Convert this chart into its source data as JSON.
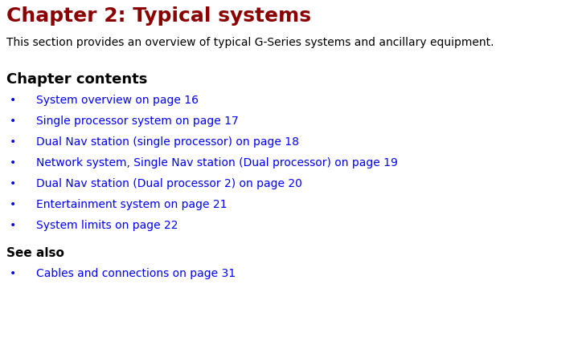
{
  "title": "Chapter 2: Typical systems",
  "title_color": "#8B0000",
  "title_fontsize": 18,
  "subtitle": "This section provides an overview of typical G-Series systems and ancillary equipment.",
  "subtitle_color": "#000000",
  "subtitle_fontsize": 10,
  "section1_heading": "Chapter contents",
  "section1_heading_color": "#000000",
  "section1_heading_fontsize": 13,
  "bullet_items": [
    "System overview on page 16",
    "Single processor system on page 17",
    "Dual Nav station (single processor) on page 18",
    "Network system, Single Nav station (Dual processor) on page 19",
    "Dual Nav station (Dual processor 2) on page 20",
    "Entertainment system on page 21",
    "System limits on page 22"
  ],
  "bullet_color": "#0000FF",
  "bullet_fontsize": 10,
  "section2_heading": "See also",
  "section2_heading_color": "#000000",
  "section2_heading_fontsize": 11,
  "see_also_items": [
    "Cables and connections on page 31"
  ],
  "see_also_color": "#0000FF",
  "see_also_fontsize": 10,
  "background_color": "#FFFFFF",
  "bullet_char": "•"
}
